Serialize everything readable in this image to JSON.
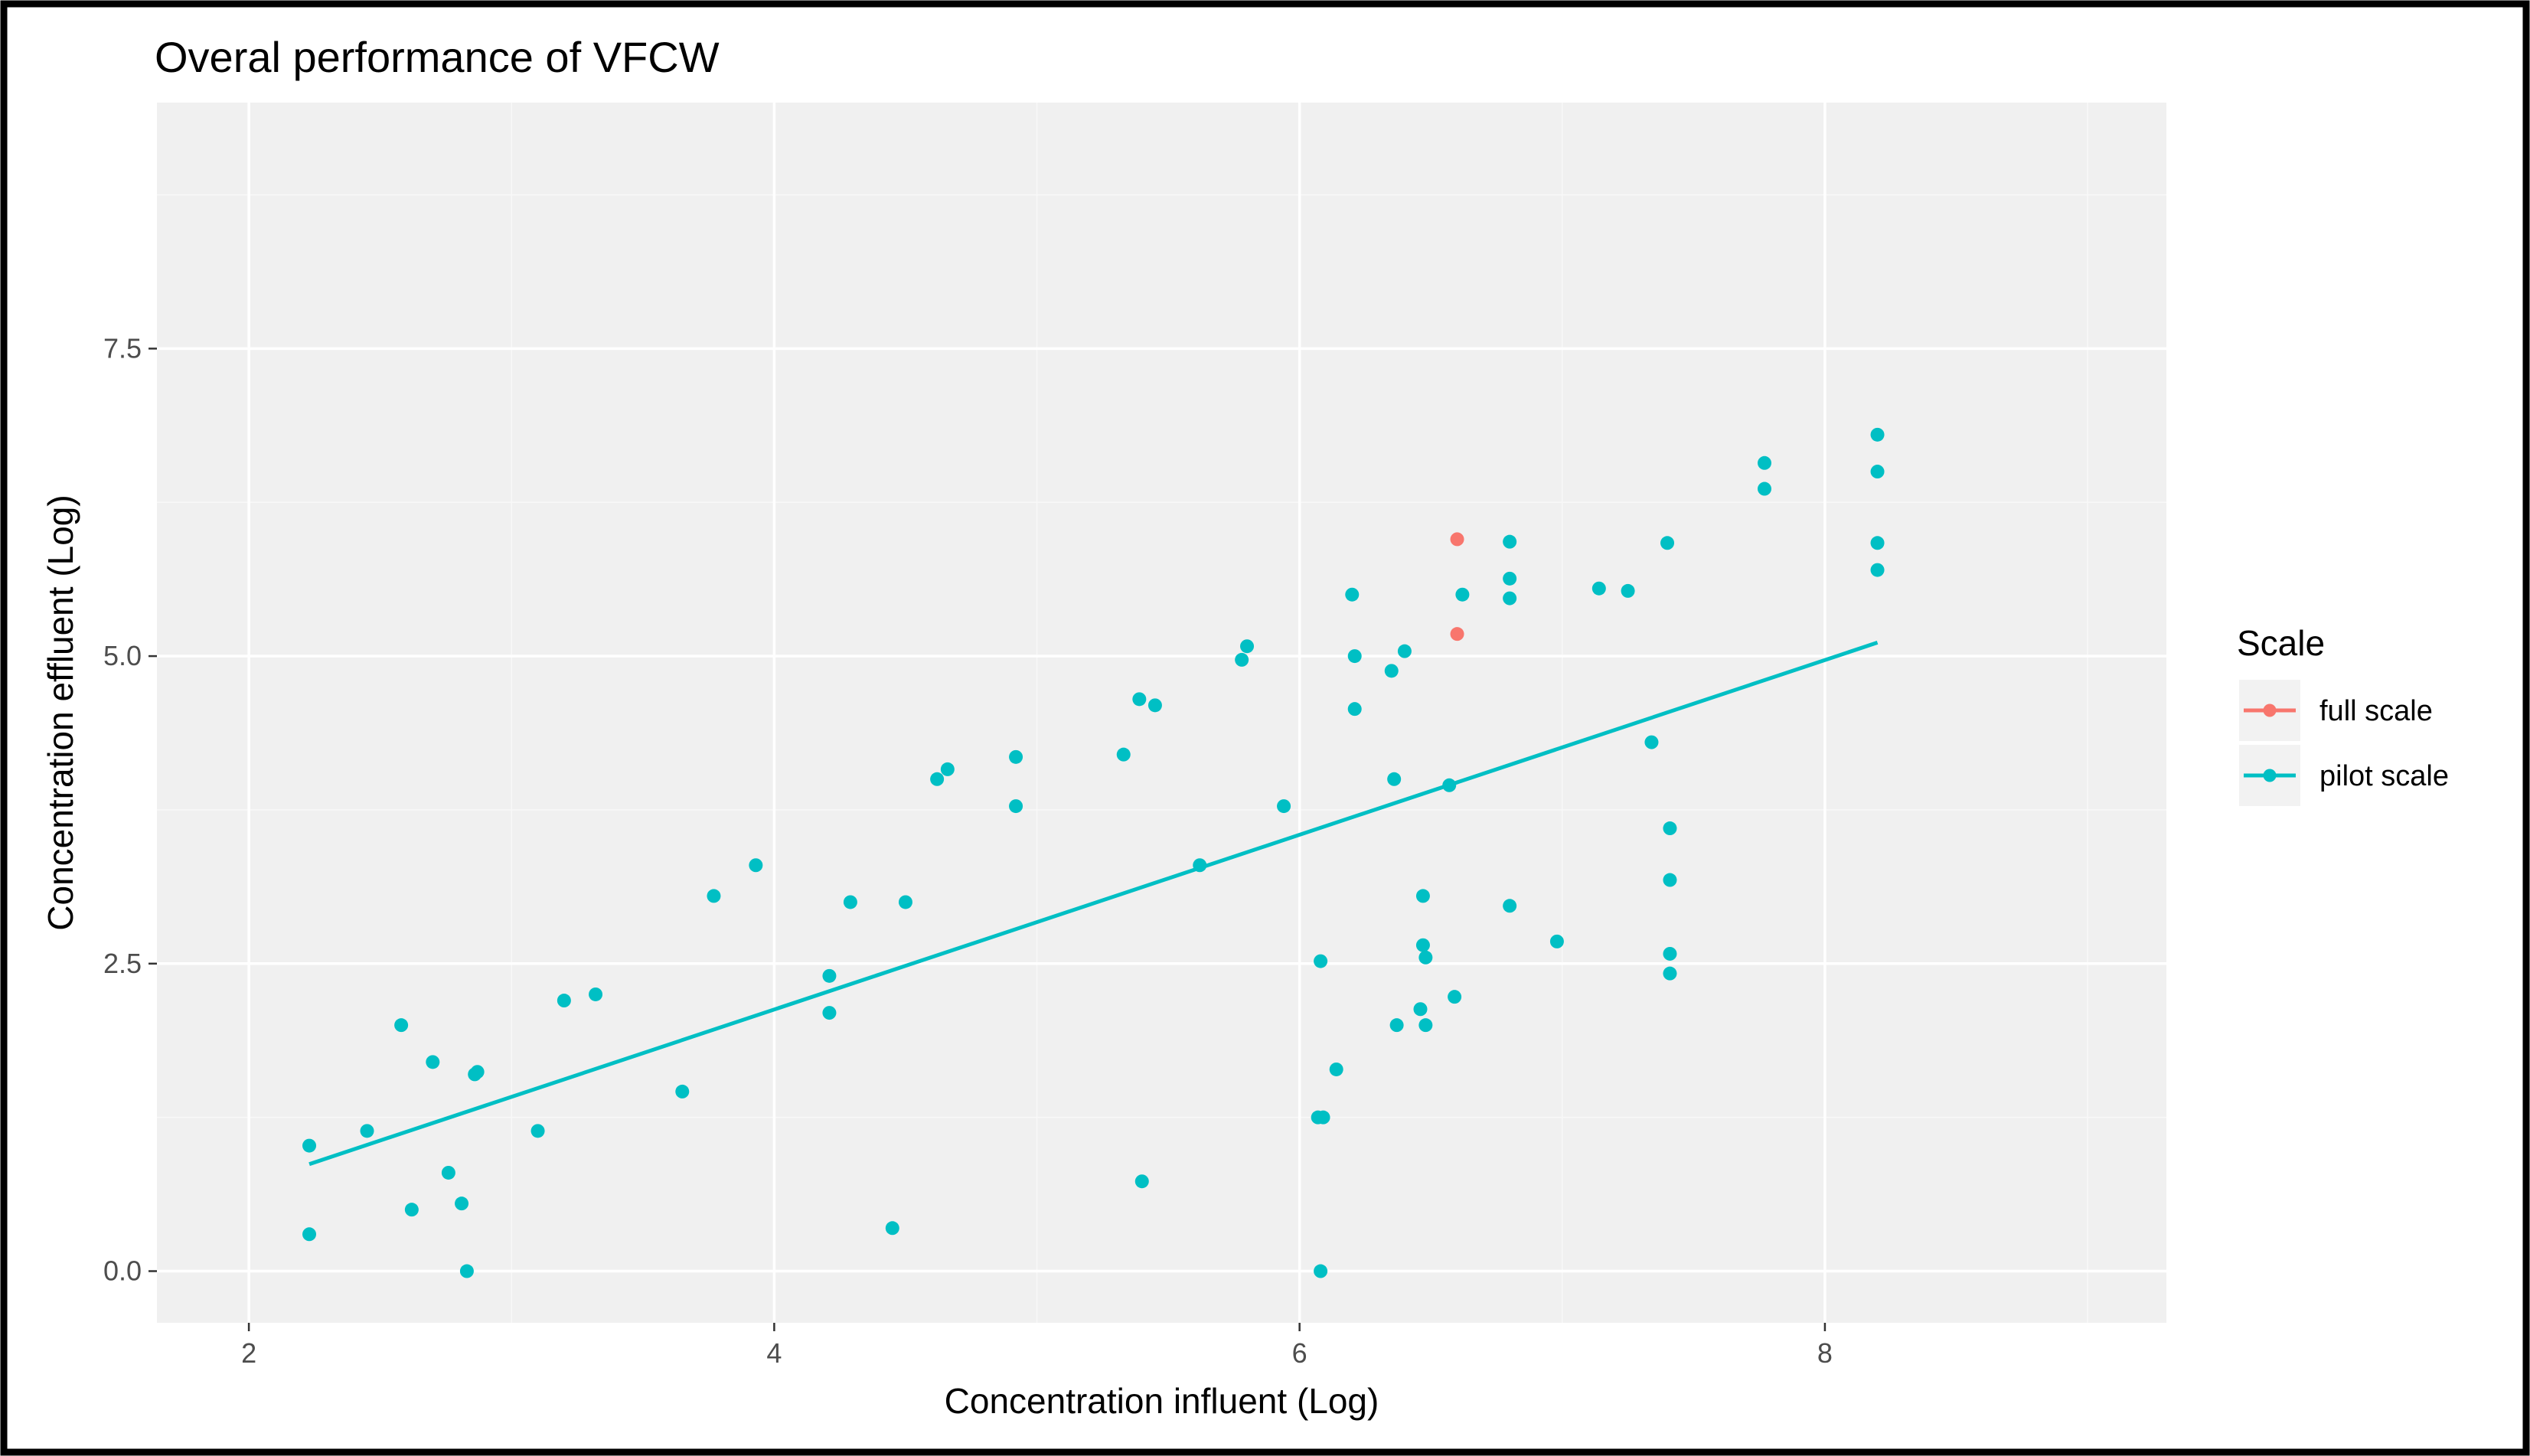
{
  "chart_data": {
    "type": "scatter",
    "title": "Overal performance of VFCW",
    "xlabel": "Concentration influent (Log)",
    "ylabel": "Concentration effluent (Log)",
    "xlim": [
      1.65,
      9.3
    ],
    "ylim": [
      -0.42,
      9.5
    ],
    "x_ticks": [
      2,
      4,
      6,
      8
    ],
    "x_tick_labels": [
      "2",
      "4",
      "6",
      "8"
    ],
    "y_ticks": [
      0,
      2.5,
      5,
      7.5
    ],
    "y_tick_labels": [
      "0.0",
      "2.5",
      "5.0",
      "7.5"
    ],
    "grid": true,
    "legend": {
      "title": "Scale",
      "position": "right"
    },
    "series": [
      {
        "name": "full scale",
        "color": "#F8766D",
        "points": [
          [
            6.6,
            5.95
          ],
          [
            6.6,
            5.18
          ]
        ]
      },
      {
        "name": "pilot scale",
        "color": "#00BFC4",
        "points": [
          [
            2.23,
            1.02
          ],
          [
            2.23,
            0.3
          ],
          [
            2.45,
            1.14
          ],
          [
            2.58,
            2.0
          ],
          [
            2.62,
            0.5
          ],
          [
            2.7,
            1.7
          ],
          [
            2.76,
            0.8
          ],
          [
            2.81,
            0.55
          ],
          [
            2.83,
            0.0
          ],
          [
            2.86,
            1.6
          ],
          [
            2.87,
            1.62
          ],
          [
            3.1,
            1.14
          ],
          [
            3.2,
            2.2
          ],
          [
            3.32,
            2.25
          ],
          [
            3.65,
            1.46
          ],
          [
            3.77,
            3.05
          ],
          [
            3.93,
            3.3
          ],
          [
            4.21,
            2.4
          ],
          [
            4.21,
            2.1
          ],
          [
            4.29,
            3.0
          ],
          [
            4.45,
            0.35
          ],
          [
            4.5,
            3.0
          ],
          [
            4.62,
            4.0
          ],
          [
            4.66,
            4.08
          ],
          [
            4.92,
            4.18
          ],
          [
            4.92,
            3.78
          ],
          [
            5.33,
            4.2
          ],
          [
            5.39,
            4.65
          ],
          [
            5.4,
            0.73
          ],
          [
            5.45,
            4.6
          ],
          [
            5.62,
            3.3
          ],
          [
            5.78,
            4.97
          ],
          [
            5.8,
            5.08
          ],
          [
            5.94,
            3.78
          ],
          [
            6.07,
            1.25
          ],
          [
            6.08,
            2.52
          ],
          [
            6.09,
            1.25
          ],
          [
            6.08,
            0.0
          ],
          [
            6.14,
            1.64
          ],
          [
            6.2,
            5.5
          ],
          [
            6.21,
            5.0
          ],
          [
            6.21,
            4.57
          ],
          [
            6.35,
            4.88
          ],
          [
            6.36,
            4.0
          ],
          [
            6.37,
            2.0
          ],
          [
            6.4,
            5.04
          ],
          [
            6.46,
            2.13
          ],
          [
            6.47,
            3.05
          ],
          [
            6.47,
            2.65
          ],
          [
            6.48,
            2.55
          ],
          [
            6.48,
            2.0
          ],
          [
            6.57,
            3.95
          ],
          [
            6.59,
            2.23
          ],
          [
            6.62,
            5.5
          ],
          [
            6.8,
            5.93
          ],
          [
            6.8,
            5.63
          ],
          [
            6.8,
            5.47
          ],
          [
            6.8,
            2.97
          ],
          [
            6.98,
            2.68
          ],
          [
            7.14,
            5.55
          ],
          [
            7.25,
            5.53
          ],
          [
            7.34,
            4.3
          ],
          [
            7.4,
            5.92
          ],
          [
            7.41,
            3.6
          ],
          [
            7.41,
            3.18
          ],
          [
            7.41,
            2.58
          ],
          [
            7.41,
            2.42
          ],
          [
            7.77,
            6.57
          ],
          [
            7.77,
            6.36
          ],
          [
            8.2,
            6.8
          ],
          [
            8.2,
            6.5
          ],
          [
            8.2,
            5.92
          ],
          [
            8.2,
            5.7
          ]
        ],
        "fit_line": [
          [
            2.23,
            0.87
          ],
          [
            8.2,
            5.11
          ]
        ]
      }
    ]
  }
}
